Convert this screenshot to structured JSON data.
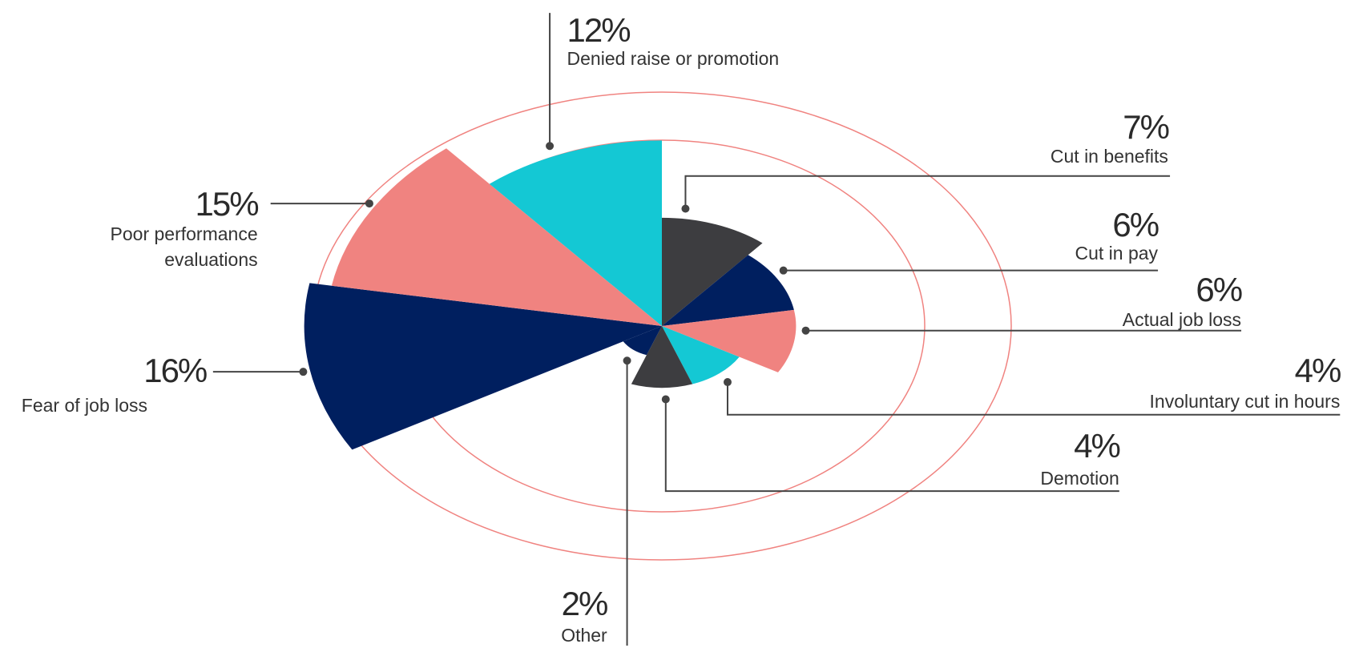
{
  "chart_data": {
    "type": "polar-area",
    "categories": [
      "Cut in benefits",
      "Cut in pay",
      "Actual job loss",
      "Involuntary cut in hours",
      "Demotion",
      "Other",
      "Fear of job loss",
      "Poor performance evaluations",
      "Denied raise or promotion"
    ],
    "values": [
      7,
      6,
      6,
      4,
      4,
      2,
      16,
      15,
      12
    ],
    "value_labels": [
      "7%",
      "6%",
      "6%",
      "4%",
      "4%",
      "2%",
      "16%",
      "15%",
      "12%"
    ],
    "colors": [
      "#3d3d40",
      "#001f5f",
      "#f08380",
      "#14c8d4",
      "#3d3d40",
      "#001f5f",
      "#001f5f",
      "#f08380",
      "#14c8d4"
    ]
  }
}
